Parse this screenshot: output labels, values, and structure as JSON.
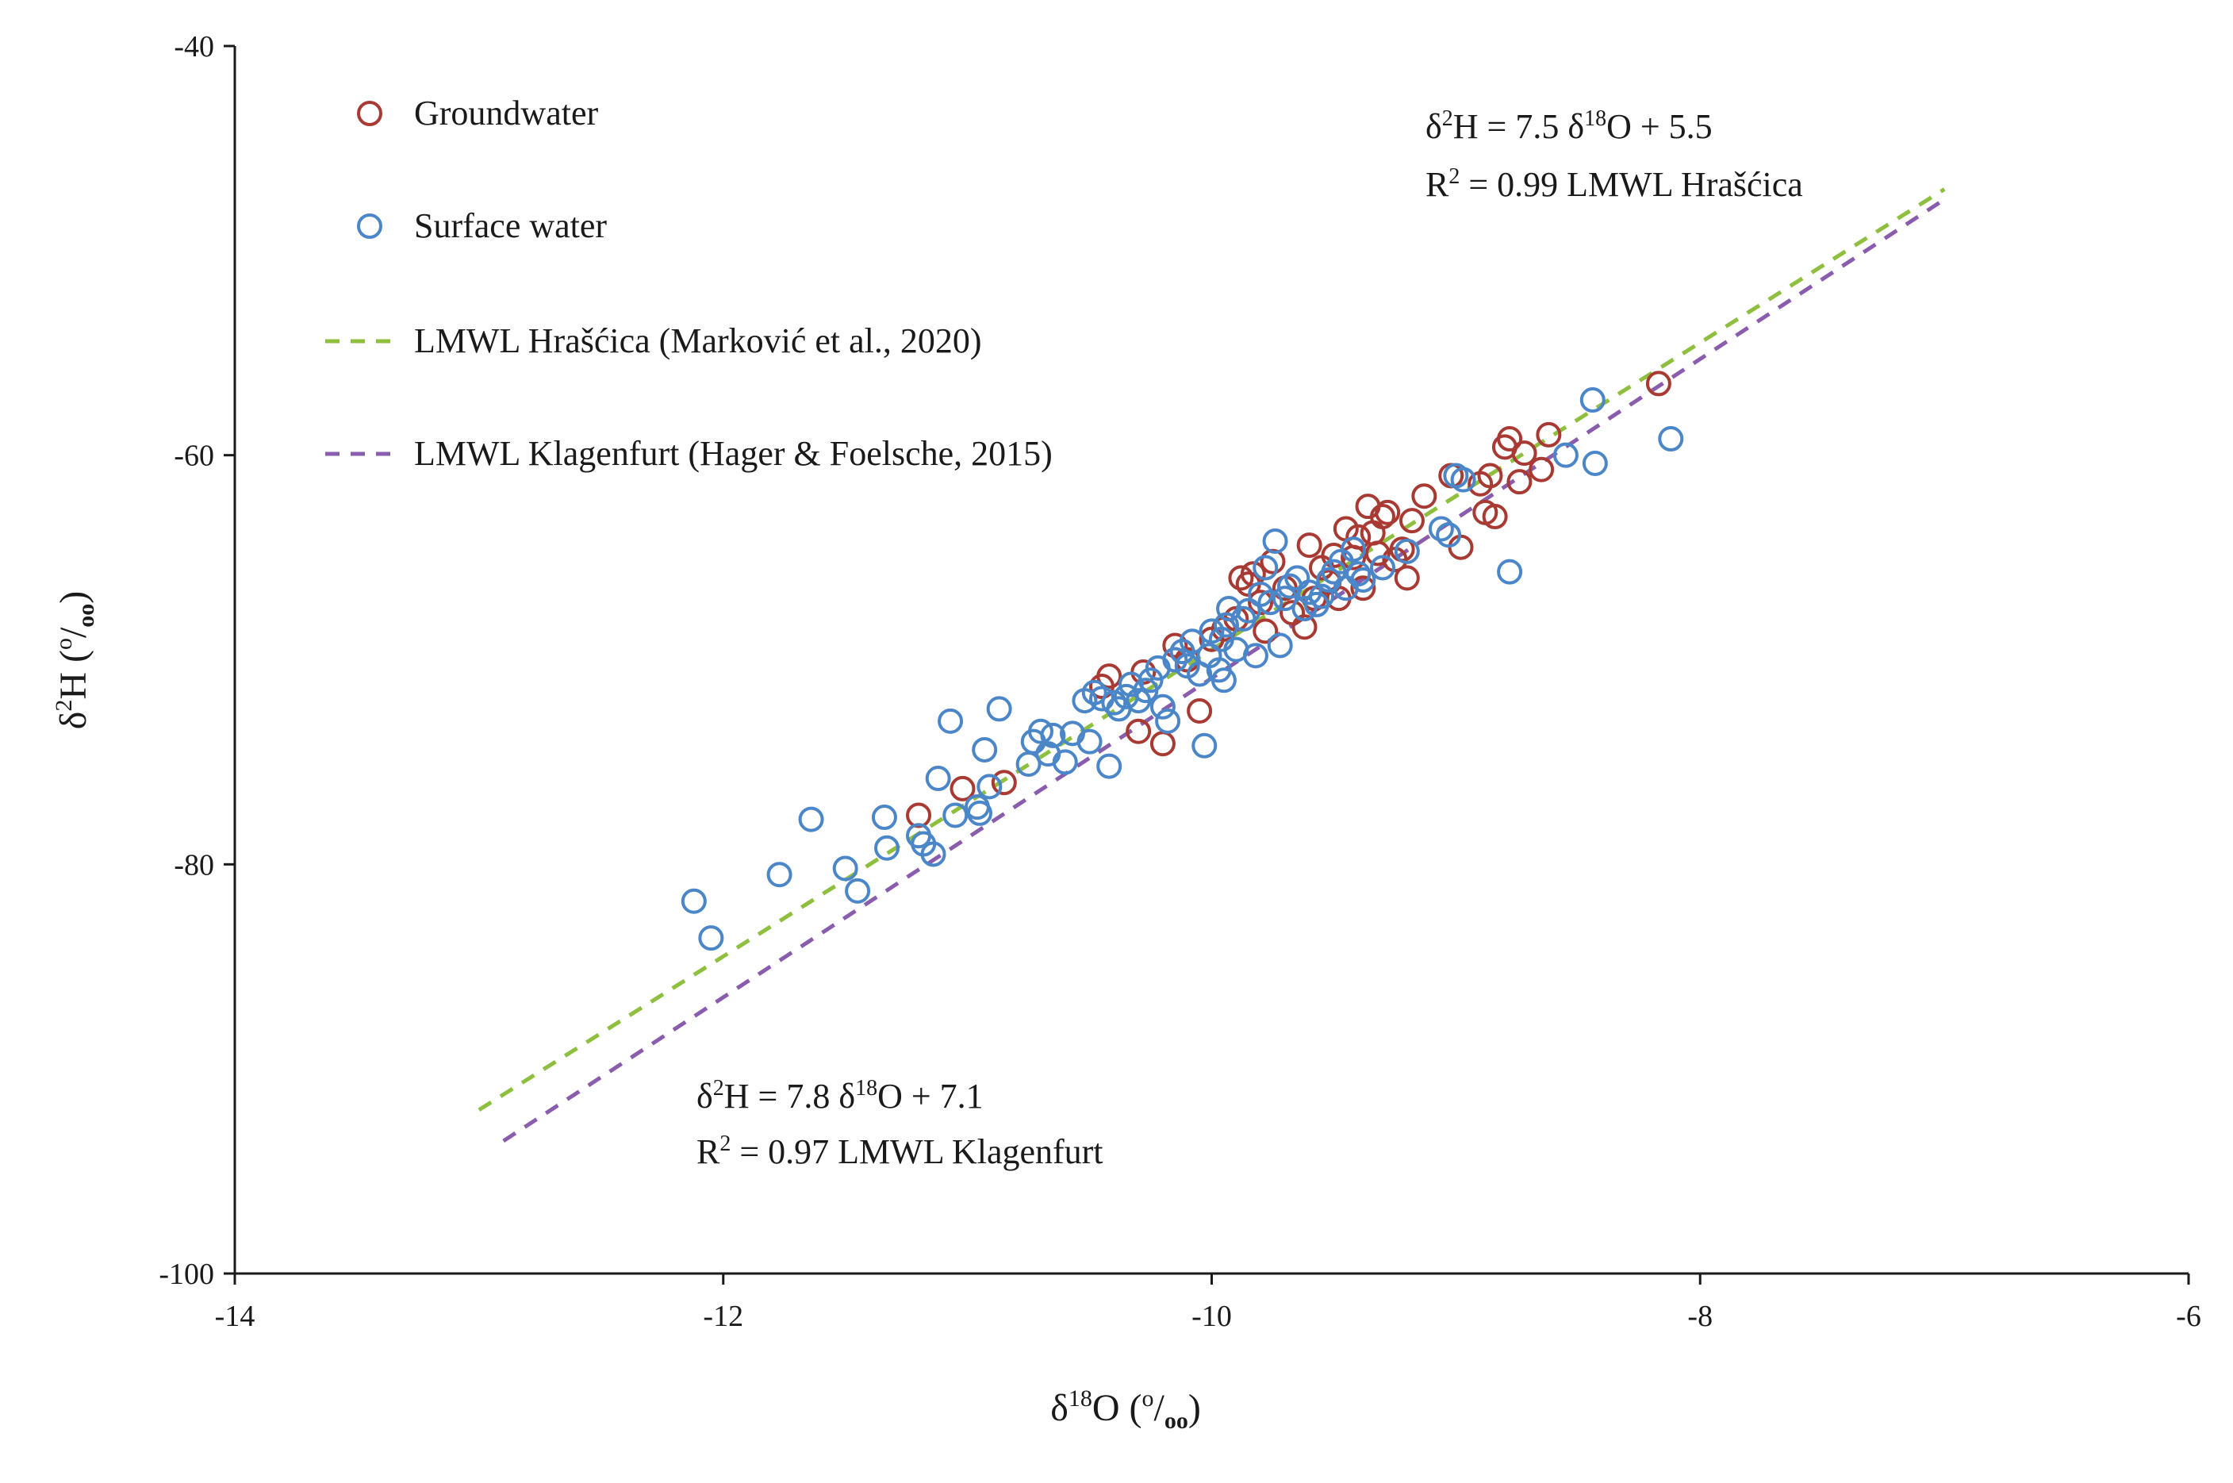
{
  "chart_data": {
    "type": "scatter",
    "xlabel": {
      "prefix": "δ",
      "sup": "18",
      "main": "O (",
      "permil_sup": "o",
      "permil_sub": "oo",
      "suffix": ")"
    },
    "ylabel": {
      "prefix": "δ",
      "sup": "2",
      "main": "H (",
      "permil_sup": "o",
      "permil_sub": "oo",
      "suffix": ")"
    },
    "xlim": [
      -14,
      -6
    ],
    "ylim": [
      -100,
      -40
    ],
    "x_ticks": [
      -14,
      -12,
      -10,
      -8,
      -6
    ],
    "y_ticks": [
      -100,
      -80,
      -60,
      -40
    ],
    "x_tick_labels": [
      "-14",
      "-12",
      "-10",
      "-8",
      "-6"
    ],
    "y_tick_labels": [
      "-100",
      "-80",
      "-60",
      "-40"
    ],
    "legend": {
      "position": "top-left",
      "items": [
        {
          "label": "Groundwater",
          "kind": "marker",
          "series": "groundwater"
        },
        {
          "label": "Surface water",
          "kind": "marker",
          "series": "surface"
        },
        {
          "label": "LMWL Hrašćica (Marković et al., 2020)",
          "kind": "line",
          "series": "lmwl_hrascica"
        },
        {
          "label": "LMWL Klagenfurt (Hager & Foelsche, 2015)",
          "kind": "line",
          "series": "lmwl_klagenfurt"
        }
      ]
    },
    "series": [
      {
        "name": "Groundwater",
        "id": "groundwater",
        "color": "#a83a33",
        "points": [
          [
            -11.2,
            -77.6
          ],
          [
            -11.02,
            -76.3
          ],
          [
            -10.85,
            -76.0
          ],
          [
            -10.45,
            -71.3
          ],
          [
            -10.42,
            -70.8
          ],
          [
            -10.3,
            -73.5
          ],
          [
            -10.28,
            -70.6
          ],
          [
            -10.2,
            -74.1
          ],
          [
            -10.15,
            -69.3
          ],
          [
            -10.1,
            -70.0
          ],
          [
            -10.05,
            -72.5
          ],
          [
            -10.0,
            -69.0
          ],
          [
            -9.95,
            -68.5
          ],
          [
            -9.9,
            -68.0
          ],
          [
            -9.88,
            -66.0
          ],
          [
            -9.85,
            -66.3
          ],
          [
            -9.83,
            -65.8
          ],
          [
            -9.8,
            -67.2
          ],
          [
            -9.78,
            -68.6
          ],
          [
            -9.75,
            -65.2
          ],
          [
            -9.7,
            -66.5
          ],
          [
            -9.67,
            -67.7
          ],
          [
            -9.62,
            -68.4
          ],
          [
            -9.6,
            -64.4
          ],
          [
            -9.58,
            -67.0
          ],
          [
            -9.55,
            -65.5
          ],
          [
            -9.52,
            -66.2
          ],
          [
            -9.5,
            -64.9
          ],
          [
            -9.48,
            -67.0
          ],
          [
            -9.45,
            -63.6
          ],
          [
            -9.42,
            -65.0
          ],
          [
            -9.4,
            -64.0
          ],
          [
            -9.38,
            -66.5
          ],
          [
            -9.36,
            -62.5
          ],
          [
            -9.34,
            -63.8
          ],
          [
            -9.32,
            -64.8
          ],
          [
            -9.3,
            -63.0
          ],
          [
            -9.28,
            -62.8
          ],
          [
            -9.25,
            -65.1
          ],
          [
            -9.22,
            -64.6
          ],
          [
            -9.2,
            -66.0
          ],
          [
            -9.18,
            -63.2
          ],
          [
            -9.13,
            -62.0
          ],
          [
            -9.02,
            -61.0
          ],
          [
            -8.98,
            -64.5
          ],
          [
            -8.9,
            -61.4
          ],
          [
            -8.88,
            -62.8
          ],
          [
            -8.86,
            -61.0
          ],
          [
            -8.84,
            -63.0
          ],
          [
            -8.8,
            -59.6
          ],
          [
            -8.78,
            -59.2
          ],
          [
            -8.74,
            -61.3
          ],
          [
            -8.72,
            -59.9
          ],
          [
            -8.65,
            -60.7
          ],
          [
            -8.62,
            -59.0
          ],
          [
            -8.17,
            -56.5
          ]
        ]
      },
      {
        "name": "Surface water",
        "id": "surface",
        "color": "#4a86c8",
        "points": [
          [
            -12.12,
            -81.8
          ],
          [
            -12.05,
            -83.6
          ],
          [
            -11.77,
            -80.5
          ],
          [
            -11.64,
            -77.8
          ],
          [
            -11.5,
            -80.2
          ],
          [
            -11.45,
            -81.3
          ],
          [
            -11.34,
            -77.7
          ],
          [
            -11.33,
            -79.2
          ],
          [
            -11.2,
            -78.6
          ],
          [
            -11.18,
            -79.0
          ],
          [
            -11.14,
            -79.5
          ],
          [
            -11.12,
            -75.8
          ],
          [
            -11.07,
            -73.0
          ],
          [
            -11.05,
            -77.6
          ],
          [
            -10.96,
            -77.2
          ],
          [
            -10.95,
            -77.5
          ],
          [
            -10.93,
            -74.4
          ],
          [
            -10.91,
            -76.2
          ],
          [
            -10.87,
            -72.4
          ],
          [
            -10.75,
            -75.1
          ],
          [
            -10.73,
            -74.0
          ],
          [
            -10.7,
            -73.5
          ],
          [
            -10.67,
            -74.6
          ],
          [
            -10.65,
            -73.7
          ],
          [
            -10.6,
            -75.0
          ],
          [
            -10.57,
            -73.6
          ],
          [
            -10.52,
            -72.0
          ],
          [
            -10.5,
            -74.0
          ],
          [
            -10.48,
            -71.6
          ],
          [
            -10.45,
            -71.9
          ],
          [
            -10.42,
            -75.2
          ],
          [
            -10.4,
            -72.1
          ],
          [
            -10.38,
            -72.4
          ],
          [
            -10.35,
            -71.8
          ],
          [
            -10.33,
            -71.2
          ],
          [
            -10.3,
            -72.0
          ],
          [
            -10.27,
            -71.5
          ],
          [
            -10.25,
            -71.0
          ],
          [
            -10.22,
            -70.4
          ],
          [
            -10.2,
            -72.3
          ],
          [
            -10.18,
            -73.0
          ],
          [
            -10.15,
            -70.0
          ],
          [
            -10.12,
            -69.6
          ],
          [
            -10.1,
            -70.3
          ],
          [
            -10.08,
            -69.1
          ],
          [
            -10.05,
            -70.7
          ],
          [
            -10.03,
            -74.2
          ],
          [
            -10.01,
            -69.8
          ],
          [
            -10.0,
            -68.6
          ],
          [
            -9.97,
            -70.5
          ],
          [
            -9.96,
            -69.0
          ],
          [
            -9.95,
            -71.0
          ],
          [
            -9.94,
            -68.3
          ],
          [
            -9.93,
            -67.5
          ],
          [
            -9.9,
            -69.5
          ],
          [
            -9.87,
            -68.0
          ],
          [
            -9.85,
            -67.6
          ],
          [
            -9.82,
            -69.8
          ],
          [
            -9.8,
            -66.8
          ],
          [
            -9.78,
            -65.5
          ],
          [
            -9.76,
            -67.2
          ],
          [
            -9.74,
            -64.2
          ],
          [
            -9.72,
            -69.3
          ],
          [
            -9.7,
            -67.0
          ],
          [
            -9.68,
            -66.4
          ],
          [
            -9.65,
            -66.0
          ],
          [
            -9.62,
            -67.5
          ],
          [
            -9.6,
            -66.7
          ],
          [
            -9.57,
            -67.3
          ],
          [
            -9.55,
            -66.9
          ],
          [
            -9.52,
            -66.1
          ],
          [
            -9.5,
            -65.7
          ],
          [
            -9.47,
            -65.2
          ],
          [
            -9.45,
            -66.5
          ],
          [
            -9.42,
            -64.6
          ],
          [
            -9.4,
            -65.8
          ],
          [
            -9.38,
            -66.1
          ],
          [
            -9.3,
            -65.5
          ],
          [
            -9.2,
            -64.7
          ],
          [
            -9.06,
            -63.6
          ],
          [
            -9.03,
            -63.9
          ],
          [
            -9.0,
            -61.0
          ],
          [
            -8.97,
            -61.2
          ],
          [
            -8.78,
            -65.7
          ],
          [
            -8.55,
            -60.0
          ],
          [
            -8.44,
            -57.3
          ],
          [
            -8.43,
            -60.4
          ],
          [
            -8.12,
            -59.2
          ]
        ]
      },
      {
        "name": "LMWL Hrašćica (Marković et al., 2020)",
        "id": "lmwl_hrascica",
        "type": "line",
        "dashed": true,
        "color": "#8fbf3f",
        "slope": 7.5,
        "intercept": 5.5,
        "x_range": [
          -13,
          -7
        ]
      },
      {
        "name": "LMWL Klagenfurt (Hager & Foelsche, 2015)",
        "id": "lmwl_klagenfurt",
        "type": "line",
        "dashed": true,
        "color": "#8a5cad",
        "slope": 7.8,
        "intercept": 7.1,
        "x_range": [
          -12.9,
          -7
        ]
      }
    ],
    "annotations": {
      "hrascica": {
        "line1": {
          "a": "δ",
          "a_sup": "2",
          "b": "H = 7.5 δ",
          "b_sup": "18",
          "c": "O + 5.5"
        },
        "line2": {
          "a": "R",
          "a_sup": "2",
          "b": " = 0.99 LMWL Hrašćica"
        }
      },
      "klagenfurt": {
        "line1": {
          "a": "δ",
          "a_sup": "2",
          "b": "H = 7.8 δ",
          "b_sup": "18",
          "c": "O + 7.1"
        },
        "line2": {
          "a": "R",
          "a_sup": "2",
          "b": " = 0.97 LMWL Klagenfurt"
        }
      }
    }
  }
}
